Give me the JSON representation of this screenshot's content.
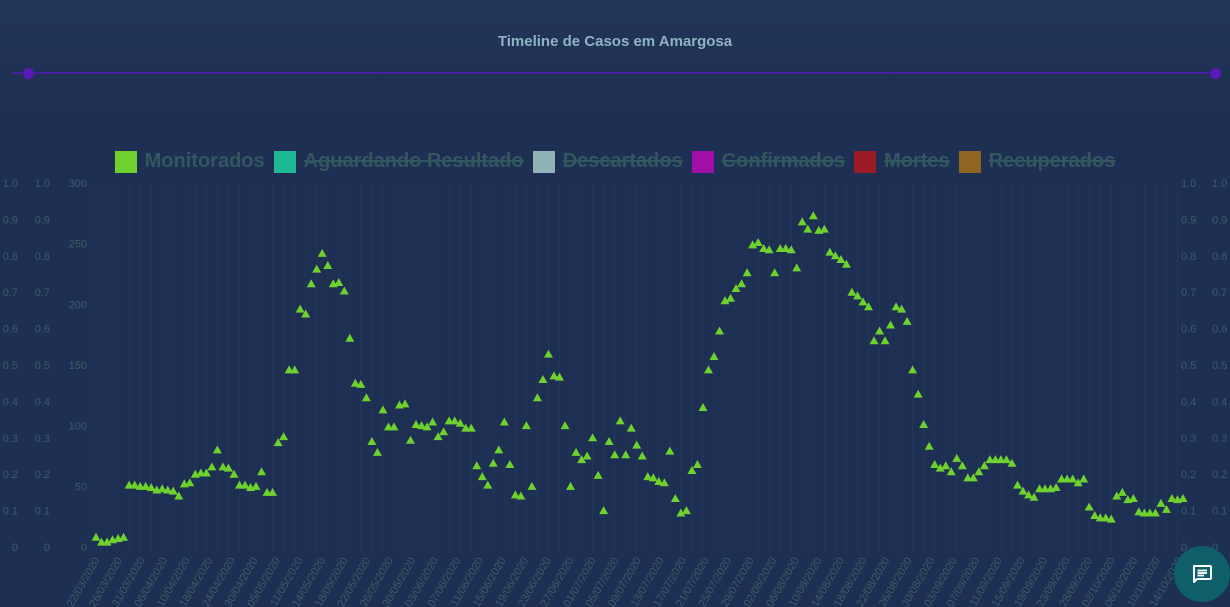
{
  "header": {
    "title": "Timeline de Casos em Amargosa"
  },
  "colors": {
    "background": "#1d2f52",
    "slider": "#4a1ea0",
    "monitorados": "#6ed12e",
    "aguardando": "#1fb894",
    "descartados": "#8fb3b6",
    "confirmados": "#a10ea8",
    "mortes": "#9c1b24",
    "recuperados": "#8e6523"
  },
  "legend": [
    {
      "label": "Monitorados",
      "color": "#6ed12e",
      "hidden": false
    },
    {
      "label": "Aguardando Resultado",
      "color": "#1fb894",
      "hidden": true
    },
    {
      "label": "Descartados",
      "color": "#8fb3b6",
      "hidden": true
    },
    {
      "label": "Confirmados",
      "color": "#a10ea8",
      "hidden": true
    },
    {
      "label": "Mortes",
      "color": "#9c1b24",
      "hidden": true
    },
    {
      "label": "Recuperados",
      "color": "#8e6523",
      "hidden": true
    }
  ],
  "chat": {
    "icon": "chat-icon"
  },
  "chart_data": {
    "type": "scatter",
    "title": "Timeline de Casos em Amargosa",
    "xlabel": "",
    "ylabel": "",
    "ylim": [
      0,
      300
    ],
    "y_ticks": [
      "0",
      "50",
      "100",
      "150",
      "200",
      "250",
      "300"
    ],
    "side_axis_ticks": [
      "0",
      "0.1",
      "0.2",
      "0.3",
      "0.4",
      "0.5",
      "0.6",
      "0.7",
      "0.8",
      "0.9",
      "1.0"
    ],
    "x_tick_labels": [
      "22/03/2020",
      "26/03/2020",
      "31/03/2020",
      "06/04/2020",
      "10/04/2020",
      "18/04/2020",
      "24/04/2020",
      "30/04/2020",
      "05/05/2020",
      "11/05/2020",
      "14/05/2020",
      "18/05/2020",
      "22/05/2020",
      "26/05/2020",
      "30/05/2020",
      "03/06/2020",
      "07/06/2020",
      "11/06/2020",
      "15/06/2020",
      "19/06/2020",
      "23/06/2020",
      "27/06/2020",
      "01/07/2020",
      "05/07/2020",
      "09/07/2020",
      "13/07/2020",
      "17/07/2020",
      "21/07/2020",
      "25/07/2020",
      "29/07/2020",
      "02/08/2020",
      "06/08/2020",
      "10/08/2020",
      "14/08/2020",
      "18/08/2020",
      "22/08/2020",
      "26/08/2020",
      "30/08/2020",
      "03/09/2020",
      "07/09/2020",
      "11/09/2020",
      "15/09/2020",
      "19/09/2020",
      "23/09/2020",
      "28/09/2020",
      "02/10/2020",
      "06/10/2020",
      "10/10/2020",
      "14/10/2020"
    ],
    "grid": true,
    "legend_position": "top",
    "marker": "triangle",
    "series": [
      {
        "name": "Monitorados",
        "color": "#6ed12e",
        "values": [
          8,
          4,
          4,
          6,
          7,
          8,
          51,
          51,
          50,
          50,
          49,
          47,
          48,
          47,
          46,
          42,
          52,
          53,
          60,
          61,
          61,
          66,
          80,
          66,
          65,
          60,
          51,
          51,
          49,
          50,
          62,
          45,
          45,
          86,
          91,
          146,
          146,
          196,
          192,
          217,
          229,
          242,
          232,
          217,
          218,
          211,
          172,
          135,
          134,
          123,
          87,
          78,
          113,
          99,
          99,
          117,
          118,
          88,
          101,
          100,
          99,
          103,
          91,
          95,
          104,
          104,
          102,
          98,
          98,
          67,
          58,
          51,
          69,
          80,
          103,
          68,
          43,
          42,
          100,
          50,
          123,
          138,
          159,
          141,
          140,
          100,
          50,
          78,
          72,
          75,
          90,
          59,
          30,
          87,
          76,
          104,
          76,
          98,
          84,
          75,
          58,
          57,
          54,
          53,
          79,
          40,
          28,
          30,
          63,
          68,
          115,
          146,
          157,
          178,
          203,
          205,
          213,
          217,
          226,
          249,
          251,
          246,
          245,
          226,
          246,
          246,
          245,
          230,
          268,
          262,
          273,
          261,
          262,
          243,
          240,
          237,
          233,
          210,
          207,
          202,
          198,
          170,
          178,
          170,
          183,
          198,
          196,
          186,
          146,
          126,
          101,
          83,
          68,
          65,
          67,
          62,
          73,
          67,
          57,
          57,
          62,
          67,
          72,
          72,
          72,
          72,
          69,
          51,
          46,
          43,
          41,
          48,
          48,
          48,
          49,
          56,
          56,
          56,
          53,
          56,
          33,
          26,
          24,
          24,
          23,
          42,
          45,
          39,
          40,
          29,
          28,
          28,
          28,
          36,
          31,
          40,
          39,
          40
        ]
      }
    ]
  }
}
